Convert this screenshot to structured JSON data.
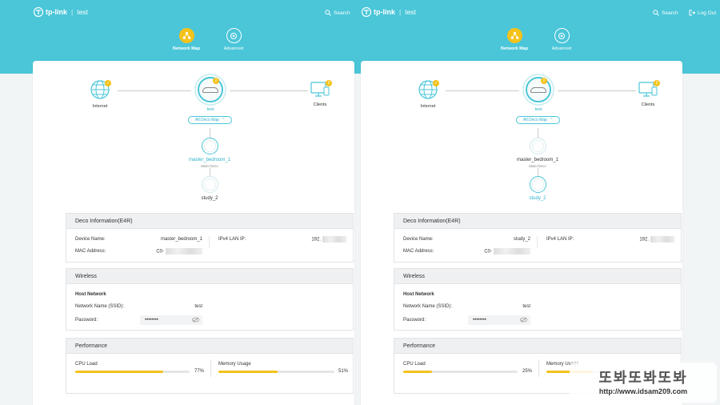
{
  "header": {
    "brand": "tp-link",
    "network": "test",
    "search_label": "Search",
    "logout_label": "Log Out",
    "tabs": [
      {
        "label": "Network Map",
        "active": true
      },
      {
        "label": "Advanced",
        "active": false
      }
    ]
  },
  "colors": {
    "accent": "#4ac6d8",
    "yellow": "#f5c21b"
  },
  "panes": [
    {
      "topology": {
        "internet_label": "Internet",
        "deco_label": "test",
        "clients_label": "Clients",
        "all_deco_map_label": "All Deco Map",
        "badge": "2"
      },
      "satellites": [
        {
          "name": "master_bedroom_1",
          "sub": "Main Deco",
          "selected": true
        },
        {
          "name": "study_2",
          "sub": "",
          "selected": false
        }
      ],
      "deco_info": {
        "title": "Deco Information(E4R)",
        "device_name_label": "Device Name:",
        "device_name": "master_bedroom_1",
        "mac_label": "MAC Address:",
        "mac_prefix": "C0-",
        "ipv4_label": "IPv4 LAN IP:",
        "ipv4_prefix": "192."
      },
      "wireless": {
        "title": "Wireless",
        "host_network_label": "Host Network",
        "ssid_label": "Network Name (SSID):",
        "ssid": "test",
        "password_label": "Password:",
        "password": "••••••••"
      },
      "performance": {
        "title": "Performance",
        "cpu_label": "CPU Load",
        "cpu": 77,
        "cpu_text": "77%",
        "mem_label": "Memory Usage",
        "mem": 51,
        "mem_text": "51%"
      }
    },
    {
      "topology": {
        "internet_label": "Internet",
        "deco_label": "test",
        "clients_label": "Clients",
        "all_deco_map_label": "All Deco Map",
        "badge": "2"
      },
      "satellites": [
        {
          "name": "master_bedroom_1",
          "sub": "Main Deco",
          "selected": false
        },
        {
          "name": "study_2",
          "sub": "",
          "selected": true
        }
      ],
      "deco_info": {
        "title": "Deco Information(E4R)",
        "device_name_label": "Device Name:",
        "device_name": "study_2",
        "mac_label": "MAC Address:",
        "mac_prefix": "C0-",
        "ipv4_label": "IPv4 LAN IP:",
        "ipv4_prefix": "192."
      },
      "wireless": {
        "title": "Wireless",
        "host_network_label": "Host Network",
        "ssid_label": "Network Name (SSID):",
        "ssid": "test",
        "password_label": "Password:",
        "password": "••••••••"
      },
      "performance": {
        "title": "Performance",
        "cpu_label": "CPU Load",
        "cpu": 25,
        "cpu_text": "25%",
        "mem_label": "Memory Usage",
        "mem": null,
        "mem_text": ""
      }
    }
  ],
  "watermark": {
    "title": "또봐또봐또봐",
    "url": "http://www.idsam209.com"
  }
}
